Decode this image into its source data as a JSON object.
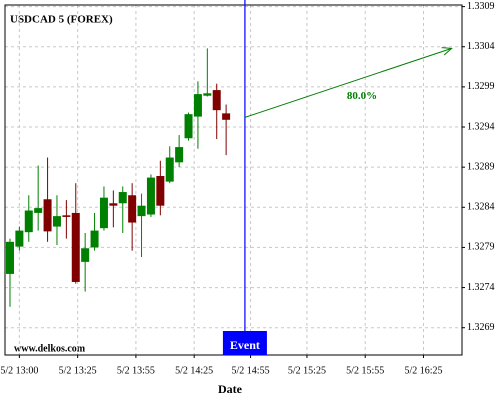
{
  "chart_data": {
    "type": "candlestick",
    "title": "USDCAD 5 (FOREX)",
    "x_label": "Date",
    "watermark": "www.delkos.com",
    "x": [
      0,
      1,
      2,
      3,
      4,
      5,
      6,
      7,
      8,
      9,
      10,
      11,
      12,
      13,
      14,
      15,
      16,
      17,
      18,
      19,
      20,
      21,
      22,
      23
    ],
    "open": [
      1.32757,
      1.32791,
      1.32809,
      1.32833,
      1.3285,
      1.32816,
      1.3283,
      1.32833,
      1.32772,
      1.3279,
      1.32814,
      1.32845,
      1.32845,
      1.32855,
      1.32829,
      1.32831,
      1.32879,
      1.32872,
      1.32896,
      1.32926,
      1.32953,
      1.32979,
      1.32986,
      1.32957
    ],
    "high": [
      1.32801,
      1.32816,
      1.32855,
      1.32892,
      1.32902,
      1.32855,
      1.32849,
      1.3287,
      1.32808,
      1.32833,
      1.32866,
      1.32861,
      1.32866,
      1.3287,
      1.32857,
      1.32881,
      1.32898,
      1.32916,
      1.3293,
      1.32958,
      1.32997,
      1.33038,
      1.32994,
      1.32968
    ],
    "low": [
      1.32716,
      1.32786,
      1.32797,
      1.32811,
      1.32797,
      1.32793,
      1.32801,
      1.32745,
      1.32735,
      1.32786,
      1.32811,
      1.32815,
      1.32808,
      1.32786,
      1.32778,
      1.32828,
      1.3283,
      1.3287,
      1.3289,
      1.32923,
      1.32913,
      1.32978,
      1.32925,
      1.32905
    ],
    "close": [
      1.32797,
      1.32811,
      1.32836,
      1.32839,
      1.3281,
      1.32829,
      1.32828,
      1.32747,
      1.32789,
      1.32811,
      1.32852,
      1.32842,
      1.32859,
      1.32821,
      1.32842,
      1.32877,
      1.32842,
      1.32902,
      1.32915,
      1.32956,
      1.32981,
      1.32982,
      1.32961,
      1.32949
    ],
    "up_color": "#008000",
    "down_color": "#800000",
    "xlim": [
      -0.53,
      48.1
    ],
    "xticks": [
      {
        "value": 1,
        "label": "5/2 13:00"
      },
      {
        "value": 7.2,
        "label": "5/2 13:25"
      },
      {
        "value": 13.4,
        "label": "5/2 13:55"
      },
      {
        "value": 19.6,
        "label": "5/2 14:25"
      },
      {
        "value": 25.6,
        "label": "5/2 14:55"
      },
      {
        "value": 31.6,
        "label": "5/2 15:25"
      },
      {
        "value": 37.8,
        "label": "5/2 15:55"
      },
      {
        "value": 44,
        "label": "5/2 16:25"
      }
    ],
    "ylim": [
      1.32656,
      1.33092
    ],
    "yticks": [
      1.3269,
      1.3274,
      1.3279,
      1.3284,
      1.3289,
      1.3294,
      1.3299,
      1.3304,
      1.3309
    ],
    "grid": true,
    "event": {
      "x": 25,
      "label": "Event",
      "color": "#0000ff"
    },
    "arrow": {
      "x": [
        25,
        47
      ],
      "y": [
        1.32952,
        1.33038
      ],
      "label": "80.0%",
      "color": "#008000"
    }
  }
}
